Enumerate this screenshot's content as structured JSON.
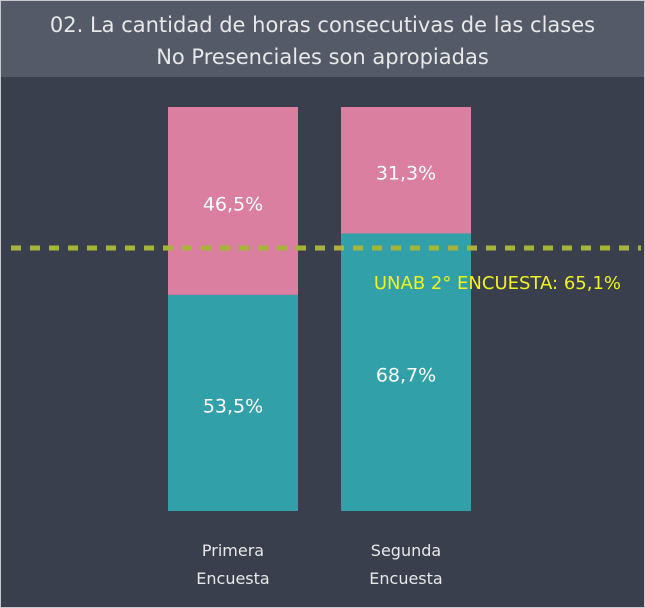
{
  "chart_data": {
    "type": "stacked_bar",
    "title": "02. La cantidad de horas consecutivas de las clases No Presenciales son apropiadas",
    "categories": [
      "Primera Encuesta",
      "Segunda Encuesta"
    ],
    "series": [
      {
        "color": "#31a0a8",
        "values": [
          53.5,
          68.7
        ],
        "value_labels": [
          "53,5%",
          "68,7%"
        ]
      },
      {
        "color": "#db7fa0",
        "values": [
          46.5,
          31.3
        ],
        "value_labels": [
          "46,5%",
          "31,3%"
        ]
      }
    ],
    "ylim": [
      0,
      100
    ],
    "reference_line": {
      "value": 65.1,
      "label": "UNAB 2° ENCUESTA: 65,1%",
      "color": "#a7b43a",
      "label_color": "#f2f21c"
    }
  }
}
